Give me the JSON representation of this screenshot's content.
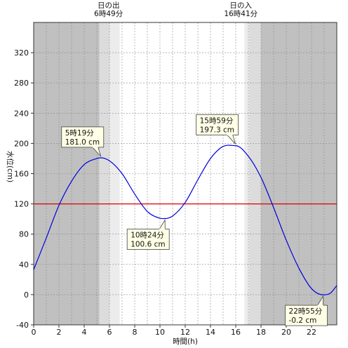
{
  "chart_data": {
    "type": "line",
    "xlabel": "時間(h)",
    "ylabel": "水位(cm)",
    "xlim": [
      0,
      24
    ],
    "ylim": [
      -40,
      360
    ],
    "x_ticks": [
      0,
      2,
      4,
      6,
      8,
      10,
      12,
      14,
      16,
      18,
      20,
      22
    ],
    "y_ticks": [
      -40,
      0,
      40,
      80,
      120,
      160,
      200,
      240,
      280,
      320
    ],
    "grid": true,
    "colors": {
      "curve": "#0000dd",
      "reference": "#dd0000",
      "night": "#c0c0c0",
      "twilight": "#dcdcdc",
      "day": "#ffffff"
    },
    "reference_line": {
      "value": 120
    },
    "sun": {
      "sunrise_label": "日の出",
      "sunrise_time": "6時49分",
      "sunrise_hour": 6.817,
      "sunset_label": "日の入",
      "sunset_time": "16時41分",
      "sunset_hour": 16.683,
      "twilight_start_hour": 5.2,
      "twilight_before_sunrise_hour": 6.0,
      "twilight_after_sunset_hour": 17.05,
      "twilight_end_hour": 18.0
    },
    "series": [
      {
        "x": [
          0,
          1,
          2,
          3,
          4,
          5,
          5.32,
          6,
          7,
          8,
          9,
          10,
          10.4,
          11,
          12,
          13,
          14,
          15,
          16,
          17,
          18,
          19,
          20,
          21,
          22,
          22.92,
          23.5,
          24
        ],
        "values": [
          33,
          75,
          118,
          150,
          172,
          180,
          181,
          177,
          160,
          133,
          110,
          101,
          100.6,
          104,
          122,
          152,
          180,
          196,
          197,
          183,
          155,
          115,
          72,
          35,
          8,
          -0.2,
          2,
          12
        ]
      }
    ],
    "annotations": [
      {
        "time": "5時19分",
        "value": "181.0 cm",
        "x": 5.32,
        "y": 181.0,
        "side": "above"
      },
      {
        "time": "15時59分",
        "value": "197.3 cm",
        "x": 15.98,
        "y": 197.3,
        "side": "above"
      },
      {
        "time": "10時24分",
        "value": "100.6 cm",
        "x": 10.4,
        "y": 100.6,
        "side": "below"
      },
      {
        "time": "22時55分",
        "value": "-0.2 cm",
        "x": 22.92,
        "y": -0.2,
        "side": "below"
      }
    ]
  }
}
